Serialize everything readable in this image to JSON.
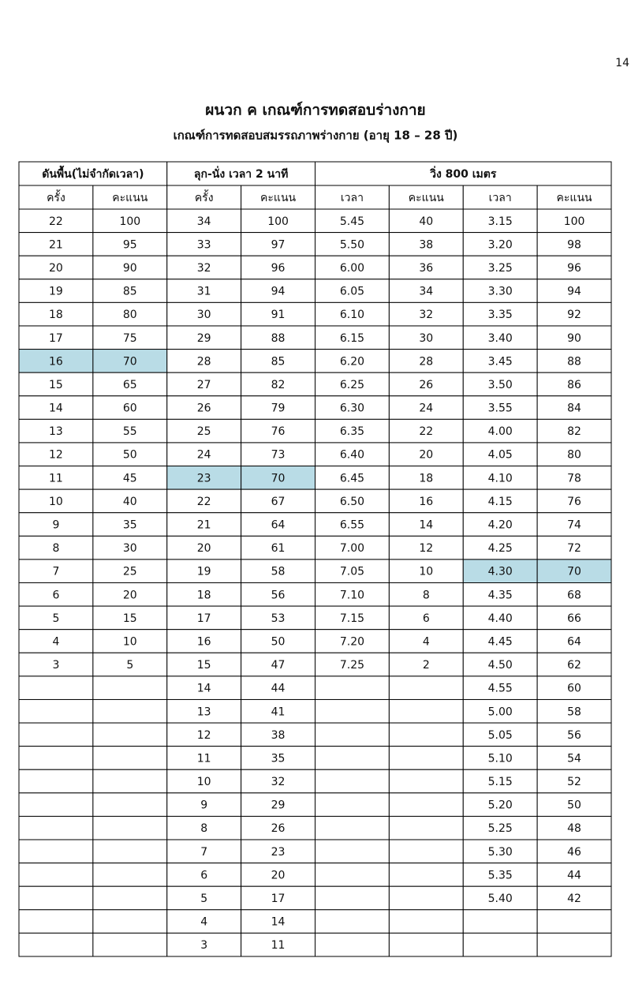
{
  "page_number": "14",
  "header": {
    "title": "ผนวก ค เกณฑ์การทดสอบร่างกาย",
    "subtitle": "เกณฑ์การทดสอบสมรรถภาพร่างกาย (อายุ 18 – 28 ปี)"
  },
  "table": {
    "group_headers": [
      "ดันพื้น(ไม่จำกัดเวลา)",
      "ลุก-นั่ง เวลา 2 นาที",
      "วิ่ง 800 เมตร"
    ],
    "group_spans": [
      2,
      2,
      4
    ],
    "sub_headers": [
      "ครั้ง",
      "คะแนน",
      "ครั้ง",
      "คะแนน",
      "เวลา",
      "คะแนน",
      "เวลา",
      "คะแนน"
    ],
    "highlight_color": "#b9dce6",
    "highlighted": [
      [
        6,
        0
      ],
      [
        6,
        1
      ],
      [
        11,
        2
      ],
      [
        11,
        3
      ],
      [
        15,
        6
      ],
      [
        15,
        7
      ]
    ],
    "rows": [
      [
        22,
        100,
        34,
        100,
        "5.45",
        40,
        "3.15",
        100
      ],
      [
        21,
        95,
        33,
        97,
        "5.50",
        38,
        "3.20",
        98
      ],
      [
        20,
        90,
        32,
        96,
        "6.00",
        36,
        "3.25",
        96
      ],
      [
        19,
        85,
        31,
        94,
        "6.05",
        34,
        "3.30",
        94
      ],
      [
        18,
        80,
        30,
        91,
        "6.10",
        32,
        "3.35",
        92
      ],
      [
        17,
        75,
        29,
        88,
        "6.15",
        30,
        "3.40",
        90
      ],
      [
        16,
        70,
        28,
        85,
        "6.20",
        28,
        "3.45",
        88
      ],
      [
        15,
        65,
        27,
        82,
        "6.25",
        26,
        "3.50",
        86
      ],
      [
        14,
        60,
        26,
        79,
        "6.30",
        24,
        "3.55",
        84
      ],
      [
        13,
        55,
        25,
        76,
        "6.35",
        22,
        "4.00",
        82
      ],
      [
        12,
        50,
        24,
        73,
        "6.40",
        20,
        "4.05",
        80
      ],
      [
        11,
        45,
        23,
        70,
        "6.45",
        18,
        "4.10",
        78
      ],
      [
        10,
        40,
        22,
        67,
        "6.50",
        16,
        "4.15",
        76
      ],
      [
        9,
        35,
        21,
        64,
        "6.55",
        14,
        "4.20",
        74
      ],
      [
        8,
        30,
        20,
        61,
        "7.00",
        12,
        "4.25",
        72
      ],
      [
        7,
        25,
        19,
        58,
        "7.05",
        10,
        "4.30",
        70
      ],
      [
        6,
        20,
        18,
        56,
        "7.10",
        8,
        "4.35",
        68
      ],
      [
        5,
        15,
        17,
        53,
        "7.15",
        6,
        "4.40",
        66
      ],
      [
        4,
        10,
        16,
        50,
        "7.20",
        4,
        "4.45",
        64
      ],
      [
        3,
        5,
        15,
        47,
        "7.25",
        2,
        "4.50",
        62
      ],
      [
        null,
        null,
        14,
        44,
        null,
        null,
        "4.55",
        60
      ],
      [
        null,
        null,
        13,
        41,
        null,
        null,
        "5.00",
        58
      ],
      [
        null,
        null,
        12,
        38,
        null,
        null,
        "5.05",
        56
      ],
      [
        null,
        null,
        11,
        35,
        null,
        null,
        "5.10",
        54
      ],
      [
        null,
        null,
        10,
        32,
        null,
        null,
        "5.15",
        52
      ],
      [
        null,
        null,
        9,
        29,
        null,
        null,
        "5.20",
        50
      ],
      [
        null,
        null,
        8,
        26,
        null,
        null,
        "5.25",
        48
      ],
      [
        null,
        null,
        7,
        23,
        null,
        null,
        "5.30",
        46
      ],
      [
        null,
        null,
        6,
        20,
        null,
        null,
        "5.35",
        44
      ],
      [
        null,
        null,
        5,
        17,
        null,
        null,
        "5.40",
        42
      ],
      [
        null,
        null,
        4,
        14,
        null,
        null,
        null,
        null
      ],
      [
        null,
        null,
        3,
        11,
        null,
        null,
        null,
        null
      ]
    ]
  }
}
